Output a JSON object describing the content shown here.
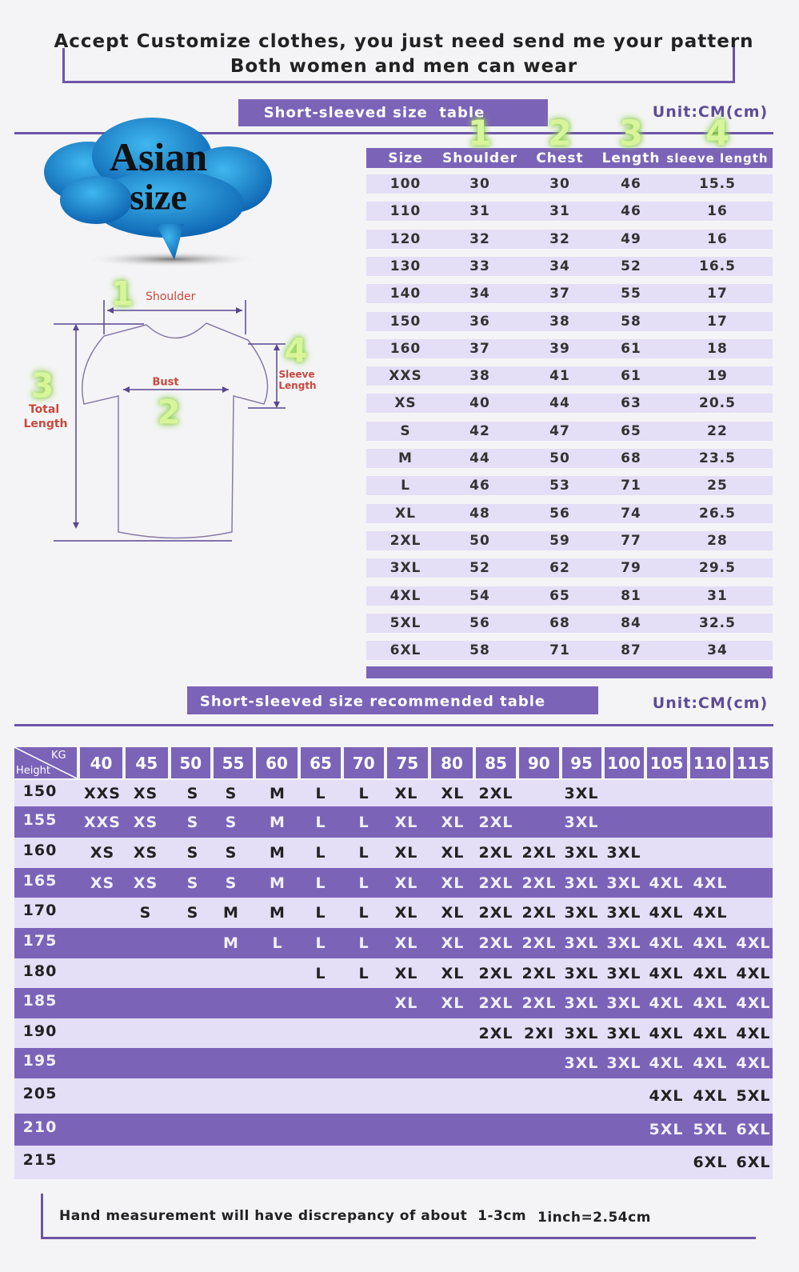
{
  "header": {
    "line1": "Accept Customize clothes, you just need send me your pattern",
    "line2": "Both women and men can wear"
  },
  "size_table": {
    "title": "Short-sleeved size  table",
    "unit": "Unit:CM(cm)",
    "badge": [
      "Asian",
      "size"
    ],
    "column_numbers": [
      "1",
      "2",
      "3",
      "4"
    ],
    "columns": [
      "Size",
      "Shoulder",
      "Chest",
      "Length",
      "sleeve length"
    ],
    "rows": [
      [
        "100",
        "30",
        "30",
        "46",
        "15.5"
      ],
      [
        "110",
        "31",
        "31",
        "46",
        "16"
      ],
      [
        "120",
        "32",
        "32",
        "49",
        "16"
      ],
      [
        "130",
        "33",
        "34",
        "52",
        "16.5"
      ],
      [
        "140",
        "34",
        "37",
        "55",
        "17"
      ],
      [
        "150",
        "36",
        "38",
        "58",
        "17"
      ],
      [
        "160",
        "37",
        "39",
        "61",
        "18"
      ],
      [
        "XXS",
        "38",
        "41",
        "61",
        "19"
      ],
      [
        "XS",
        "40",
        "44",
        "63",
        "20.5"
      ],
      [
        "S",
        "42",
        "47",
        "65",
        "22"
      ],
      [
        "M",
        "44",
        "50",
        "68",
        "23.5"
      ],
      [
        "L",
        "46",
        "53",
        "71",
        "25"
      ],
      [
        "XL",
        "48",
        "56",
        "74",
        "26.5"
      ],
      [
        "2XL",
        "50",
        "59",
        "77",
        "28"
      ],
      [
        "3XL",
        "52",
        "62",
        "79",
        "29.5"
      ],
      [
        "4XL",
        "54",
        "65",
        "81",
        "31"
      ],
      [
        "5XL",
        "56",
        "68",
        "84",
        "32.5"
      ],
      [
        "6XL",
        "58",
        "71",
        "87",
        "34"
      ]
    ]
  },
  "diagram": {
    "shoulder_number": "1",
    "shoulder": "Shoulder",
    "bust": "Bust",
    "bust_number": "2",
    "total_number": "3",
    "total_length": [
      "Total",
      "Length"
    ],
    "sleeve_number": "4",
    "sleeve_length": [
      "Sleeve",
      "Length"
    ]
  },
  "recommend_table": {
    "title": "Short-sleeved size recommended table",
    "unit": "Unit:CM(cm)",
    "kg_label": "KG",
    "height_label": "Height",
    "kg": [
      "40",
      "45",
      "50",
      "55",
      "60",
      "65",
      "70",
      "75",
      "80",
      "85",
      "90",
      "95",
      "100",
      "105",
      "110",
      "115"
    ],
    "rows": [
      {
        "height": "150",
        "sizes": [
          "XXS",
          "XS",
          "S",
          "S",
          "M",
          "L",
          "L",
          "XL",
          "XL",
          "2XL",
          null,
          "3XL",
          null,
          null,
          null,
          null
        ]
      },
      {
        "height": "155",
        "sizes": [
          "XXS",
          "XS",
          "S",
          "S",
          "M",
          "L",
          "L",
          "XL",
          "XL",
          "2XL",
          null,
          "3XL",
          null,
          null,
          null,
          null
        ]
      },
      {
        "height": "160",
        "sizes": [
          "XS",
          "XS",
          "S",
          "S",
          "M",
          "L",
          "L",
          "XL",
          "XL",
          "2XL",
          "2XL",
          "3XL",
          "3XL",
          null,
          null,
          null
        ]
      },
      {
        "height": "165",
        "sizes": [
          "XS",
          "XS",
          "S",
          "S",
          "M",
          "L",
          "L",
          "XL",
          "XL",
          "2XL",
          "2XL",
          "3XL",
          "3XL",
          "4XL",
          "4XL",
          null
        ]
      },
      {
        "height": "170",
        "sizes": [
          null,
          "S",
          "S",
          "M",
          "M",
          "L",
          "L",
          "XL",
          "XL",
          "2XL",
          "2XL",
          "3XL",
          "3XL",
          "4XL",
          "4XL",
          null
        ]
      },
      {
        "height": "175",
        "sizes": [
          null,
          null,
          null,
          "M",
          "L",
          "L",
          "L",
          "XL",
          "XL",
          "2XL",
          "2XL",
          "3XL",
          "3XL",
          "4XL",
          "4XL",
          "4XL"
        ]
      },
      {
        "height": "180",
        "sizes": [
          null,
          null,
          null,
          null,
          null,
          "L",
          "L",
          "XL",
          "XL",
          "2XL",
          "2XL",
          "3XL",
          "3XL",
          "4XL",
          "4XL",
          "4XL"
        ]
      },
      {
        "height": "185",
        "sizes": [
          null,
          null,
          null,
          null,
          null,
          null,
          null,
          "XL",
          "XL",
          "2XL",
          "2XL",
          "3XL",
          "3XL",
          "4XL",
          "4XL",
          "4XL"
        ]
      },
      {
        "height": "190",
        "sizes": [
          null,
          null,
          null,
          null,
          null,
          null,
          null,
          null,
          null,
          "2XL",
          "2XI",
          "3XL",
          "3XL",
          "4XL",
          "4XL",
          "4XL"
        ]
      },
      {
        "height": "195",
        "sizes": [
          null,
          null,
          null,
          null,
          null,
          null,
          null,
          null,
          null,
          null,
          null,
          "3XL",
          "3XL",
          "4XL",
          "4XL",
          "4XL"
        ]
      },
      {
        "height": "205",
        "sizes": [
          null,
          null,
          null,
          null,
          null,
          null,
          null,
          null,
          null,
          null,
          null,
          null,
          null,
          "4XL",
          "4XL",
          "5XL"
        ]
      },
      {
        "height": "210",
        "sizes": [
          null,
          null,
          null,
          null,
          null,
          null,
          null,
          null,
          null,
          null,
          null,
          null,
          null,
          "5XL",
          "5XL",
          "6XL"
        ]
      },
      {
        "height": "215",
        "sizes": [
          null,
          null,
          null,
          null,
          null,
          null,
          null,
          null,
          null,
          null,
          null,
          null,
          null,
          null,
          "6XL",
          "6XL"
        ]
      }
    ]
  },
  "footer": {
    "note": "Hand measurement will have discrepancy of about  1-3cm",
    "conversion": "1inch=2.54cm"
  }
}
